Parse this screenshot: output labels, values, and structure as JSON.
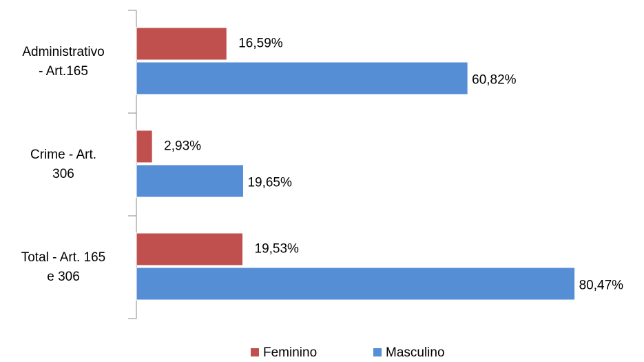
{
  "chart_data": {
    "type": "bar",
    "orientation": "horizontal",
    "categories": [
      "Administrativo\n- Art.165",
      "Crime - Art.\n306",
      "Total - Art. 165\ne 306"
    ],
    "series": [
      {
        "name": "Feminino",
        "color": "#c0504d",
        "values": [
          16.59,
          2.93,
          19.53
        ],
        "value_labels": [
          "16,59%",
          "2,93%",
          "19,53%"
        ]
      },
      {
        "name": "Masculino",
        "color": "#558ed5",
        "values": [
          60.82,
          19.65,
          80.47
        ],
        "value_labels": [
          "60,82%",
          "19,65%",
          "80,47%"
        ]
      }
    ],
    "xlim": [
      0,
      90
    ],
    "legend": "bottom"
  }
}
